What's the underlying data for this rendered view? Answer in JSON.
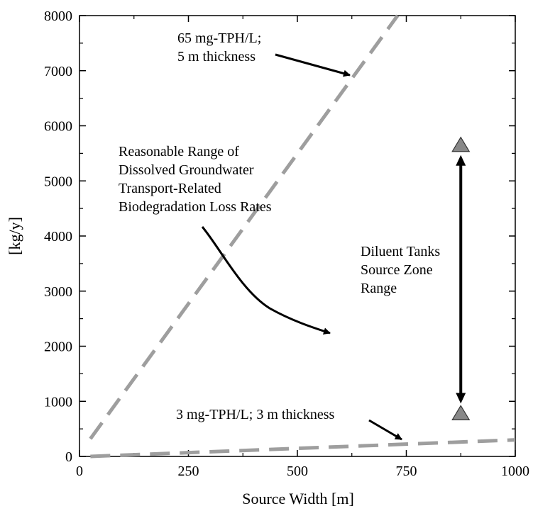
{
  "chart_data": {
    "type": "line",
    "xlabel": "Source Width [m]",
    "ylabel": "[kg/y]",
    "xlim": [
      0,
      1000
    ],
    "ylim": [
      0,
      8000
    ],
    "x_ticks": [
      0,
      250,
      500,
      750,
      1000
    ],
    "y_ticks": [
      0,
      1000,
      2000,
      3000,
      4000,
      5000,
      6000,
      7000,
      8000
    ],
    "x_tick_labels": [
      "0",
      "250",
      "500",
      "750",
      "1000"
    ],
    "y_tick_labels": [
      "0",
      "1000",
      "2000",
      "3000",
      "4000",
      "5000",
      "6000",
      "7000",
      "8000"
    ],
    "grid": false,
    "series": [
      {
        "name": "65 mg-TPH/L; 5 m thickness",
        "style": "dashed",
        "color": "#9e9e9e",
        "x": [
          25,
          730
        ],
        "y": [
          320,
          8000
        ]
      },
      {
        "name": "3 mg-TPH/L; 3 m thickness",
        "style": "dashed",
        "color": "#9e9e9e",
        "x": [
          25,
          1000
        ],
        "y": [
          0,
          300
        ]
      }
    ],
    "range_markers": {
      "x": 875,
      "y_high": 5650,
      "y_low": 780,
      "color": "#888888"
    },
    "annotations": [
      {
        "lines": [
          "65 mg-TPH/L;",
          "5 m thickness"
        ]
      },
      {
        "lines": [
          "Reasonable Range of",
          "Dissolved Groundwater",
          "Transport-Related",
          "Biodegradation Loss Rates"
        ]
      },
      {
        "lines": [
          "Diluent Tanks",
          "Source Zone",
          "Range"
        ]
      },
      {
        "lines": [
          "3 mg-TPH/L; 3 m thickness"
        ]
      }
    ]
  }
}
